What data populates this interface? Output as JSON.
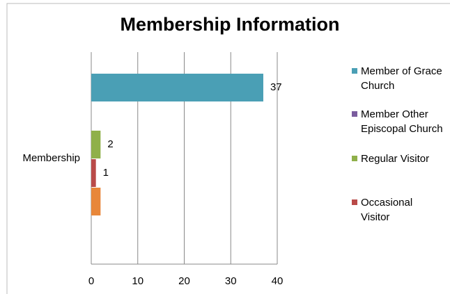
{
  "chart_data": {
    "type": "hbar",
    "title": "Membership Information",
    "categories": [
      "Membership"
    ],
    "series": [
      {
        "name": "Member of Grace Church",
        "color": "#4a9fb5",
        "values": [
          37
        ],
        "labels": true
      },
      {
        "name": "Member Other Episcopal Church",
        "color": "#7a5c9e",
        "values": [
          0
        ],
        "labels": false
      },
      {
        "name": "Regular Visitor",
        "color": "#8fb04a",
        "values": [
          2
        ],
        "labels": true
      },
      {
        "name": "Occasional Visitor",
        "color": "#b94a48",
        "values": [
          1
        ],
        "labels": true
      },
      {
        "name": null,
        "color": "#e8873a",
        "values": [
          2
        ],
        "labels": false
      }
    ],
    "xlim": [
      0,
      40
    ],
    "xticks": [
      0,
      10,
      20,
      30,
      40
    ],
    "grid": true
  }
}
